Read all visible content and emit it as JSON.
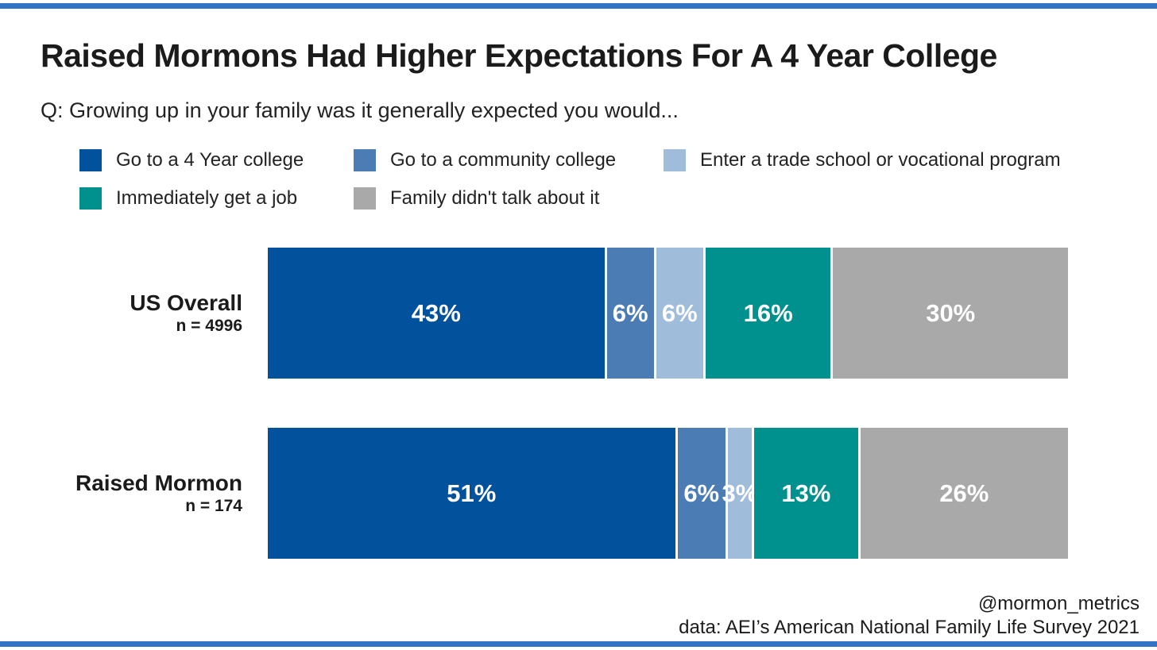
{
  "title": "Raised Mormons Had Higher Expectations For A 4 Year College",
  "subtitle": "Q: Growing up in your family was it generally expected you would...",
  "accent_color": "#3273c5",
  "legend": [
    {
      "label": "Go to a 4 Year college",
      "color": "#02519c"
    },
    {
      "label": "Go to a community college",
      "color": "#4c7cb4"
    },
    {
      "label": "Enter a trade school or vocational program",
      "color": "#9fbcda"
    },
    {
      "label": "Immediately get a job",
      "color": "#00918e"
    },
    {
      "label": "Family didn't talk about it",
      "color": "#a9a9a9"
    }
  ],
  "footer": {
    "handle": "@mormon_metrics",
    "source": "data: AEI’s American National Family Life Survey 2021"
  },
  "chart_data": {
    "type": "bar",
    "variant": "horizontal_stacked",
    "stack_unit": "percent",
    "categories": [
      "Go to a 4 Year college",
      "Go to a community college",
      "Enter a trade school or vocational program",
      "Immediately get a job",
      "Family didn't talk about it"
    ],
    "colors": [
      "#02519c",
      "#4c7cb4",
      "#9fbcda",
      "#00918e",
      "#a9a9a9"
    ],
    "rows": [
      {
        "label": "US Overall",
        "sample_size_label": "n = 4996",
        "values": [
          43,
          6,
          6,
          16,
          30
        ]
      },
      {
        "label": "Raised Mormon",
        "sample_size_label": "n = 174",
        "values": [
          51,
          6,
          3,
          13,
          26
        ]
      }
    ],
    "value_suffix": "%",
    "bar_label_color": "#ffffff",
    "legend_position": "top",
    "grid": false
  }
}
